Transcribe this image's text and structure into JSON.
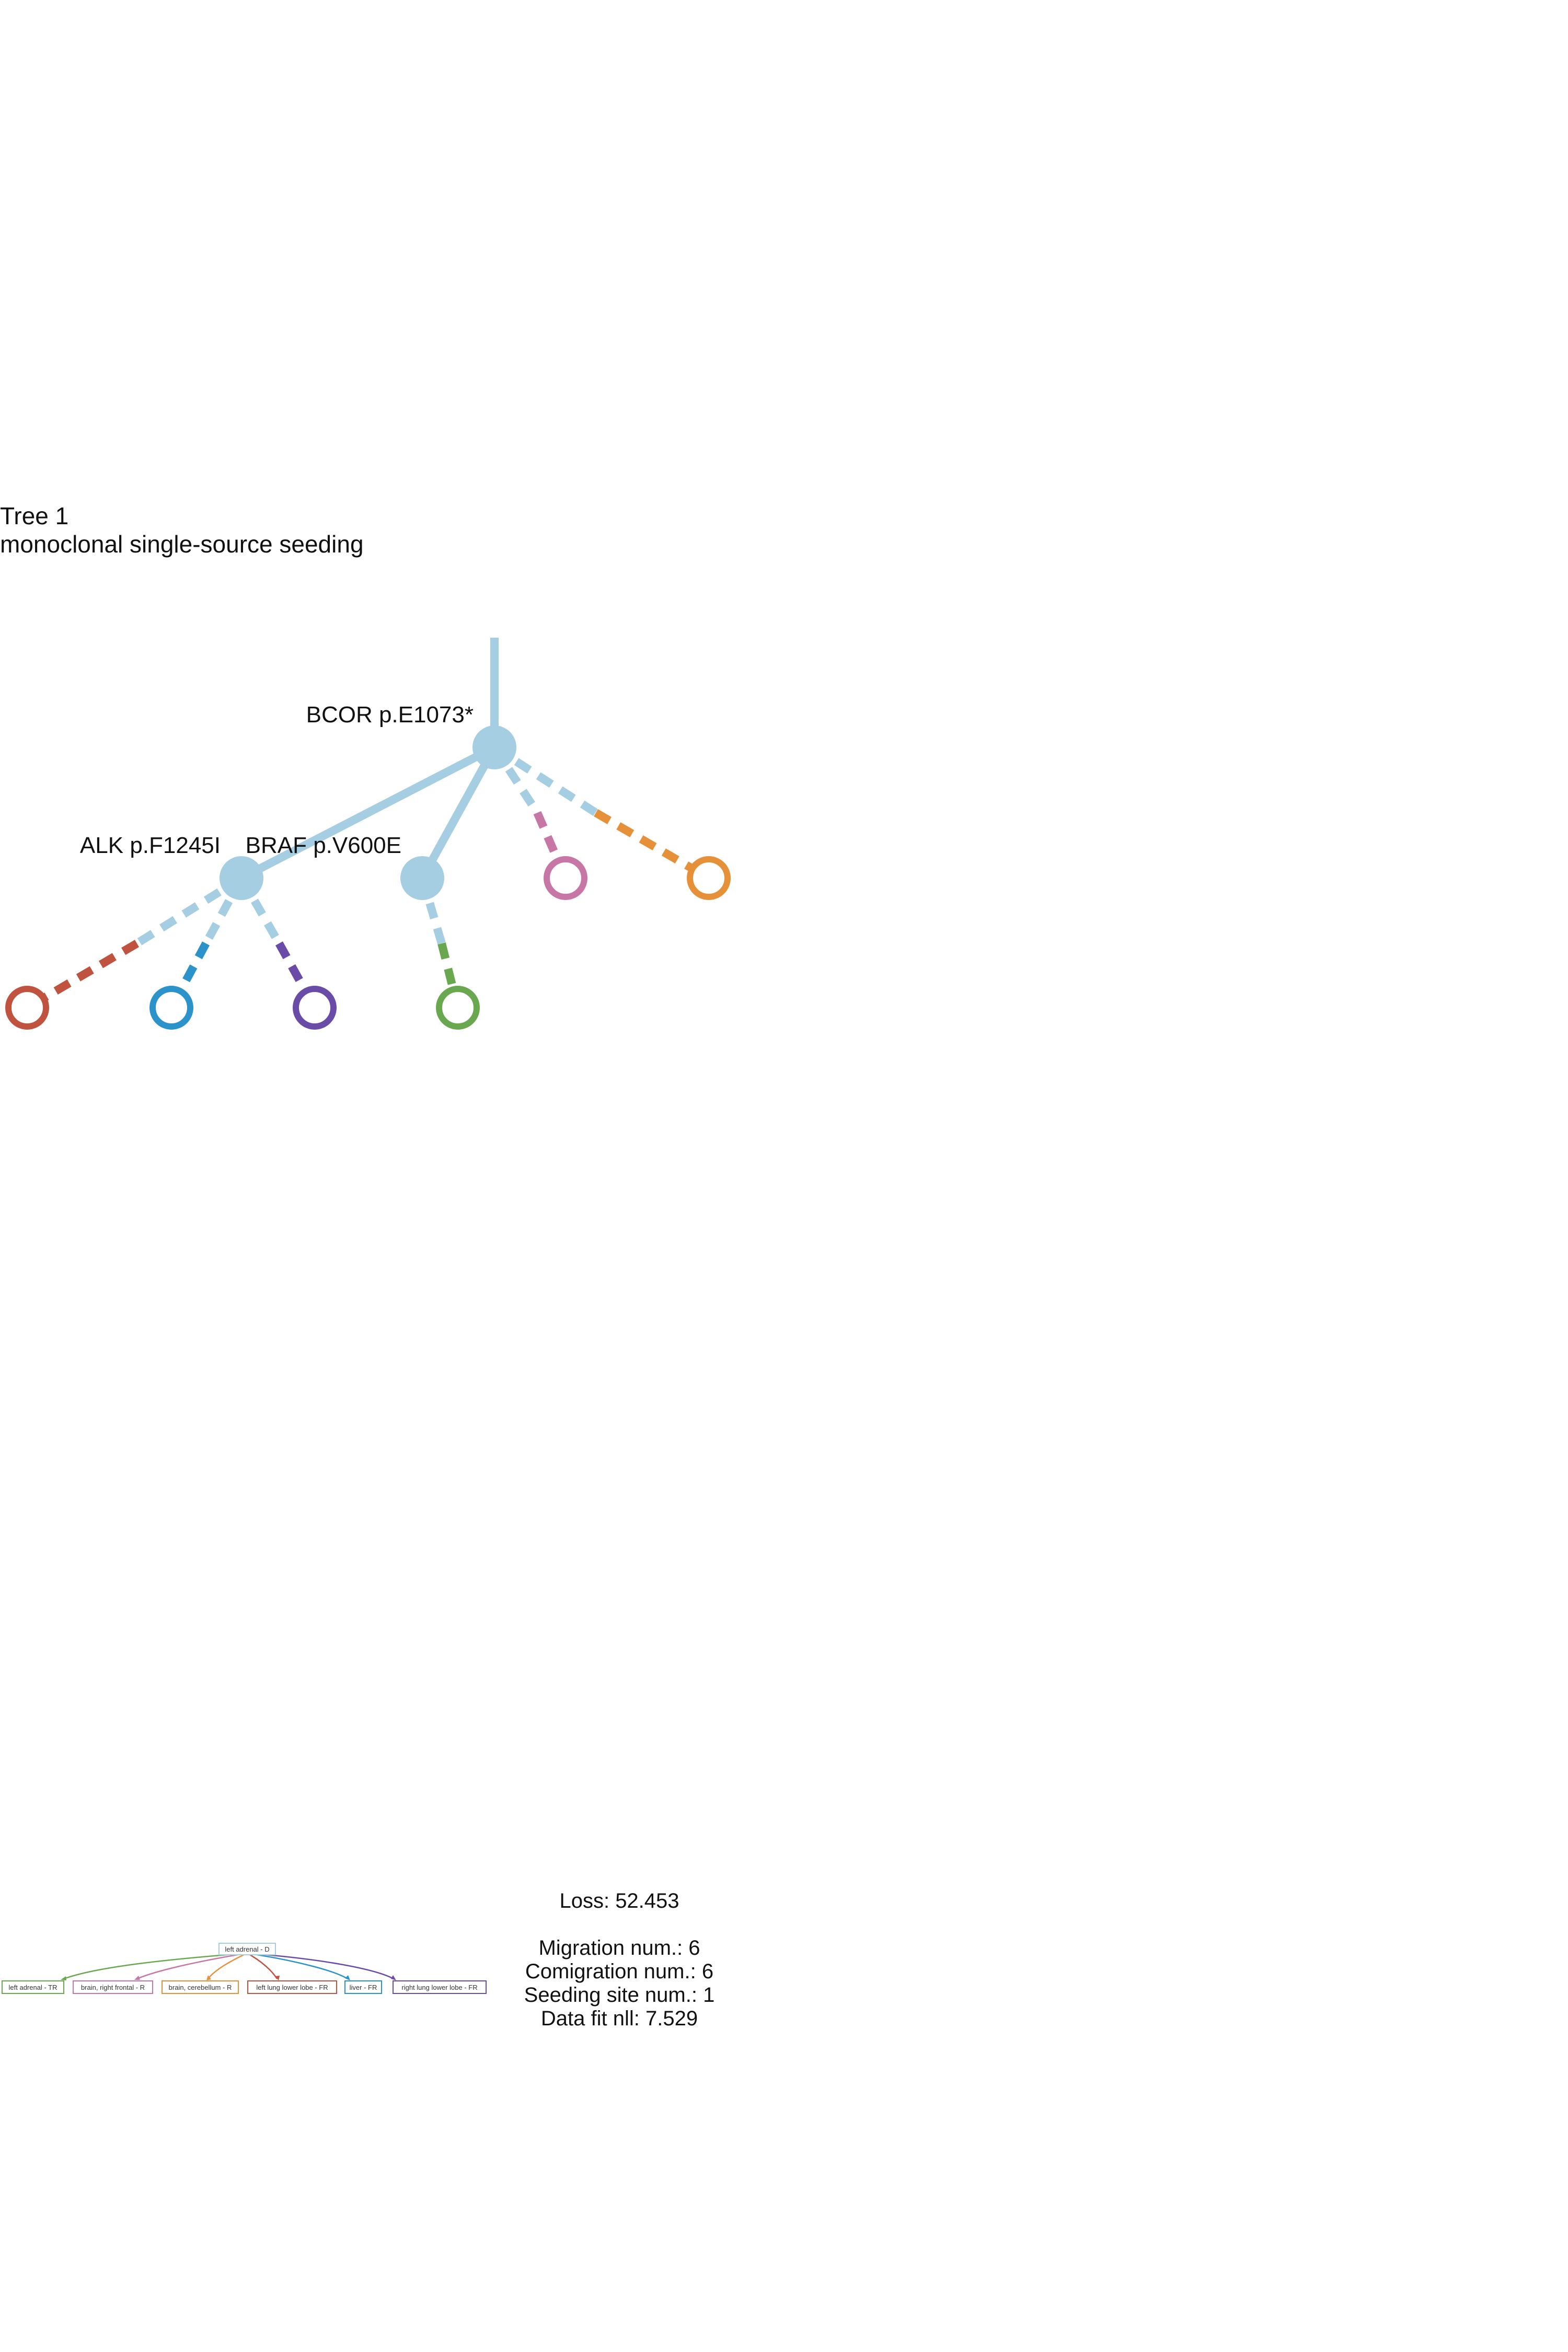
{
  "header": {
    "title": "Tree 1",
    "subtitle": "monoclonal single-source seeding"
  },
  "colors": {
    "clone": "#a6cee3",
    "left_lung_lower_lobe": "#c0533f",
    "liver": "#2b93c9",
    "right_lung_lower_lobe": "#6a4ba8",
    "left_adrenal_tr": "#6aa84f",
    "brain_right_frontal": "#c677a6",
    "brain_cerebellum": "#e6913a"
  },
  "tree": {
    "mutations": {
      "bcor": "BCOR p.E1073*",
      "alk": "ALK p.F1245I",
      "braf": "BRAF p.V600E"
    }
  },
  "migration_graph": {
    "source": "left adrenal - D",
    "targets": [
      "left adrenal - TR",
      "brain, right frontal - R",
      "brain, cerebellum - R",
      "left lung lower lobe - FR",
      "liver - FR",
      "right lung lower lobe - FR"
    ]
  },
  "stats": {
    "loss": "Loss: 52.453",
    "migration": "Migration num.: 6",
    "comigration": "Comigration num.: 6",
    "seeding": "Seeding site num.: 1",
    "data_fit": "Data fit nll: 7.529"
  }
}
